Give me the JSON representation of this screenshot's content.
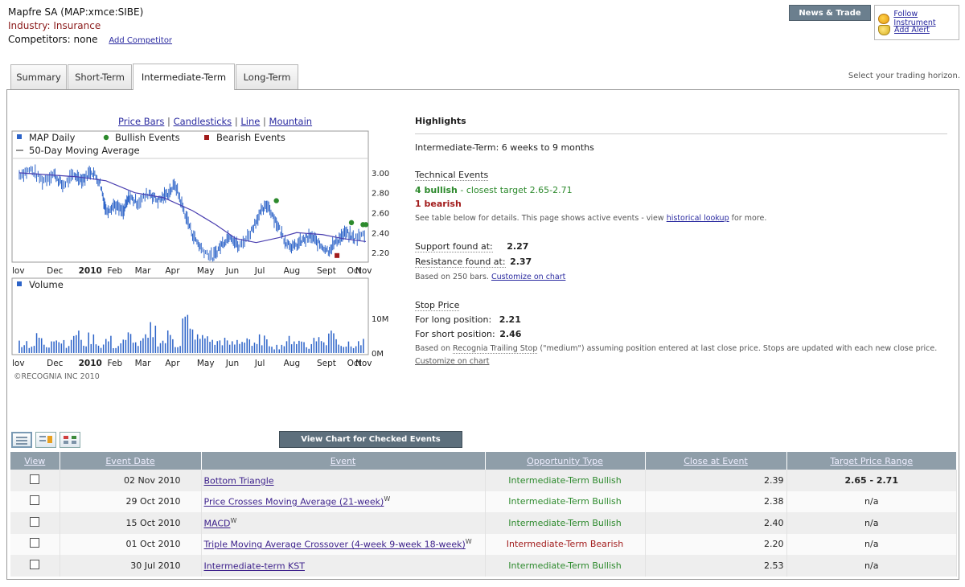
{
  "header": {
    "title": "Mapfre SA (MAP:xmce:SIBE)",
    "industry": "Industry: Insurance",
    "competitors": "Competitors: none",
    "add_competitor": "Add Competitor",
    "news_trade": "News & Trade",
    "follow": "Follow Instrument",
    "add_alert": "Add Alert"
  },
  "tabs": [
    {
      "label": "Summary"
    },
    {
      "label": "Short-Term"
    },
    {
      "label": "Intermediate-Term",
      "active": true
    },
    {
      "label": "Long-Term"
    }
  ],
  "horizon_hint": "Select your trading horizon.",
  "chart_links": [
    "Price Bars",
    "Candlesticks",
    "Line",
    "Mountain"
  ],
  "chart_data": {
    "type": "line",
    "legend": [
      "MAP Daily",
      "Bullish Events",
      "Bearish Events",
      "50-Day Moving Average"
    ],
    "volume_label": "Volume",
    "x_ticks": [
      "lov",
      "Dec",
      "2010",
      "Feb",
      "Mar",
      "Apr",
      "May",
      "Jun",
      "Jul",
      "Aug",
      "Sept",
      "Oct",
      "Nov"
    ],
    "y_ticks": [
      "3.00",
      "2.80",
      "2.60",
      "2.40",
      "2.20"
    ],
    "y_range": [
      2.12,
      3.12
    ],
    "volume_ticks": [
      "10M",
      "0M"
    ],
    "price_series": [
      {
        "m": 0.0,
        "v": 2.98
      },
      {
        "m": 0.4,
        "v": 3.03
      },
      {
        "m": 0.8,
        "v": 2.92
      },
      {
        "m": 1.2,
        "v": 2.99
      },
      {
        "m": 1.5,
        "v": 2.87
      },
      {
        "m": 1.9,
        "v": 2.98
      },
      {
        "m": 2.2,
        "v": 2.93
      },
      {
        "m": 2.5,
        "v": 3.02
      },
      {
        "m": 2.8,
        "v": 2.9
      },
      {
        "m": 3.0,
        "v": 2.62
      },
      {
        "m": 3.3,
        "v": 2.68
      },
      {
        "m": 3.6,
        "v": 2.6
      },
      {
        "m": 3.8,
        "v": 2.76
      },
      {
        "m": 4.1,
        "v": 2.7
      },
      {
        "m": 4.5,
        "v": 2.8
      },
      {
        "m": 4.8,
        "v": 2.72
      },
      {
        "m": 5.1,
        "v": 2.78
      },
      {
        "m": 5.4,
        "v": 2.88
      },
      {
        "m": 5.7,
        "v": 2.62
      },
      {
        "m": 6.0,
        "v": 2.38
      },
      {
        "m": 6.3,
        "v": 2.24
      },
      {
        "m": 6.7,
        "v": 2.15
      },
      {
        "m": 7.0,
        "v": 2.28
      },
      {
        "m": 7.3,
        "v": 2.38
      },
      {
        "m": 7.6,
        "v": 2.25
      },
      {
        "m": 8.0,
        "v": 2.4
      },
      {
        "m": 8.3,
        "v": 2.58
      },
      {
        "m": 8.6,
        "v": 2.68
      },
      {
        "m": 8.9,
        "v": 2.5
      },
      {
        "m": 9.2,
        "v": 2.32
      },
      {
        "m": 9.5,
        "v": 2.25
      },
      {
        "m": 9.8,
        "v": 2.32
      },
      {
        "m": 10.1,
        "v": 2.36
      },
      {
        "m": 10.4,
        "v": 2.28
      },
      {
        "m": 10.7,
        "v": 2.22
      },
      {
        "m": 11.0,
        "v": 2.32
      },
      {
        "m": 11.3,
        "v": 2.4
      },
      {
        "m": 11.6,
        "v": 2.34
      },
      {
        "m": 12.0,
        "v": 2.39
      }
    ],
    "moving_average": [
      {
        "m": 0.0,
        "v": 3.0
      },
      {
        "m": 1.0,
        "v": 2.98
      },
      {
        "m": 2.0,
        "v": 2.96
      },
      {
        "m": 3.0,
        "v": 2.92
      },
      {
        "m": 4.0,
        "v": 2.8
      },
      {
        "m": 5.0,
        "v": 2.75
      },
      {
        "m": 6.0,
        "v": 2.62
      },
      {
        "m": 6.8,
        "v": 2.48
      },
      {
        "m": 7.5,
        "v": 2.34
      },
      {
        "m": 8.2,
        "v": 2.3
      },
      {
        "m": 9.0,
        "v": 2.35
      },
      {
        "m": 9.6,
        "v": 2.4
      },
      {
        "m": 10.5,
        "v": 2.38
      },
      {
        "m": 11.2,
        "v": 2.34
      },
      {
        "m": 12.0,
        "v": 2.31
      }
    ],
    "bullish_events": [
      {
        "m": 8.9,
        "v": 2.72
      },
      {
        "m": 11.5,
        "v": 2.5
      },
      {
        "m": 11.9,
        "v": 2.48
      },
      {
        "m": 12.0,
        "v": 2.48
      }
    ],
    "bearish_events": [
      {
        "m": 11.0,
        "v": 2.17
      }
    ],
    "volume": [
      4.5,
      3.2,
      6.1,
      2.8,
      7.4,
      5.0,
      3.9,
      8.2,
      4.1,
      6.0,
      3.3,
      5.2,
      2.9,
      4.4,
      6.8,
      3.7,
      5.5,
      9.3,
      4.8,
      7.1,
      3.6,
      12.8,
      8.4,
      5.9,
      6.6,
      4.2,
      5.1,
      3.8,
      4.9,
      6.2,
      3.1,
      5.6,
      4.0,
      2.7,
      3.5,
      5.8,
      4.6,
      3.0,
      6.4,
      4.3,
      10.6,
      5.2,
      3.4,
      2.9,
      4.1
    ]
  },
  "copyright": "©RECOGNIA INC 2010",
  "highlights": {
    "title": "Highlights",
    "horizon": "Intermediate-Term: 6 weeks to 9 months",
    "tech_title": "Technical Events",
    "bullish": "4 bullish",
    "closest_target": " - closest target 2.65-2.71",
    "bearish": "1 bearish",
    "note_pre": "See table below for details. This page shows active events - view ",
    "note_link": "historical lookup",
    "note_post": " for more.",
    "support_label": "Support found at:",
    "support_val": "2.27",
    "resistance_label": "Resistance found at:",
    "resistance_val": "2.37",
    "bars_note": "Based on 250 bars.",
    "customize": "Customize on chart",
    "stop_title": "Stop Price",
    "long_label": "For long position:",
    "long_val": "2.21",
    "short_label": "For short position:",
    "short_val": "2.46",
    "stop_note_pre": "Based on ",
    "stop_note_link": "Recognia Trailing Stop",
    "stop_note_post": " (\"medium\") assuming position entered at last close price. Stops are updated with each new close price.",
    "customize2": "Customize on chart"
  },
  "view_button": "View Chart for Checked Events",
  "table": {
    "headers": [
      "View",
      "Event Date",
      "Event",
      "Opportunity Type",
      "Close at Event",
      "Target Price Range"
    ],
    "rows": [
      {
        "date": "02 Nov 2010",
        "event": "Bottom Triangle",
        "w": "",
        "type": "Intermediate-Term Bullish",
        "close": "2.39",
        "target": "2.65 - 2.71"
      },
      {
        "date": "29 Oct 2010",
        "event": "Price Crosses Moving Average (21-week)",
        "w": "W",
        "type": "Intermediate-Term Bullish",
        "close": "2.38",
        "target": "n/a"
      },
      {
        "date": "15 Oct 2010",
        "event": "MACD",
        "w": "W",
        "type": "Intermediate-Term Bullish",
        "close": "2.40",
        "target": "n/a"
      },
      {
        "date": "01 Oct 2010",
        "event": "Triple Moving Average Crossover (4-week 9-week 18-week)",
        "w": "W",
        "type": "Intermediate-Term Bearish",
        "close": "2.20",
        "target": "n/a"
      },
      {
        "date": "30 Jul 2010",
        "event": "Intermediate-term KST",
        "w": "",
        "type": "Intermediate-Term Bullish",
        "close": "2.53",
        "target": "n/a"
      }
    ]
  },
  "colors": {
    "bullish": "#2d8a2d",
    "bearish": "#a21c1c",
    "series": "#2c63c8",
    "ma": "#4a3fb0",
    "header_bar": "#8f9ea9"
  }
}
